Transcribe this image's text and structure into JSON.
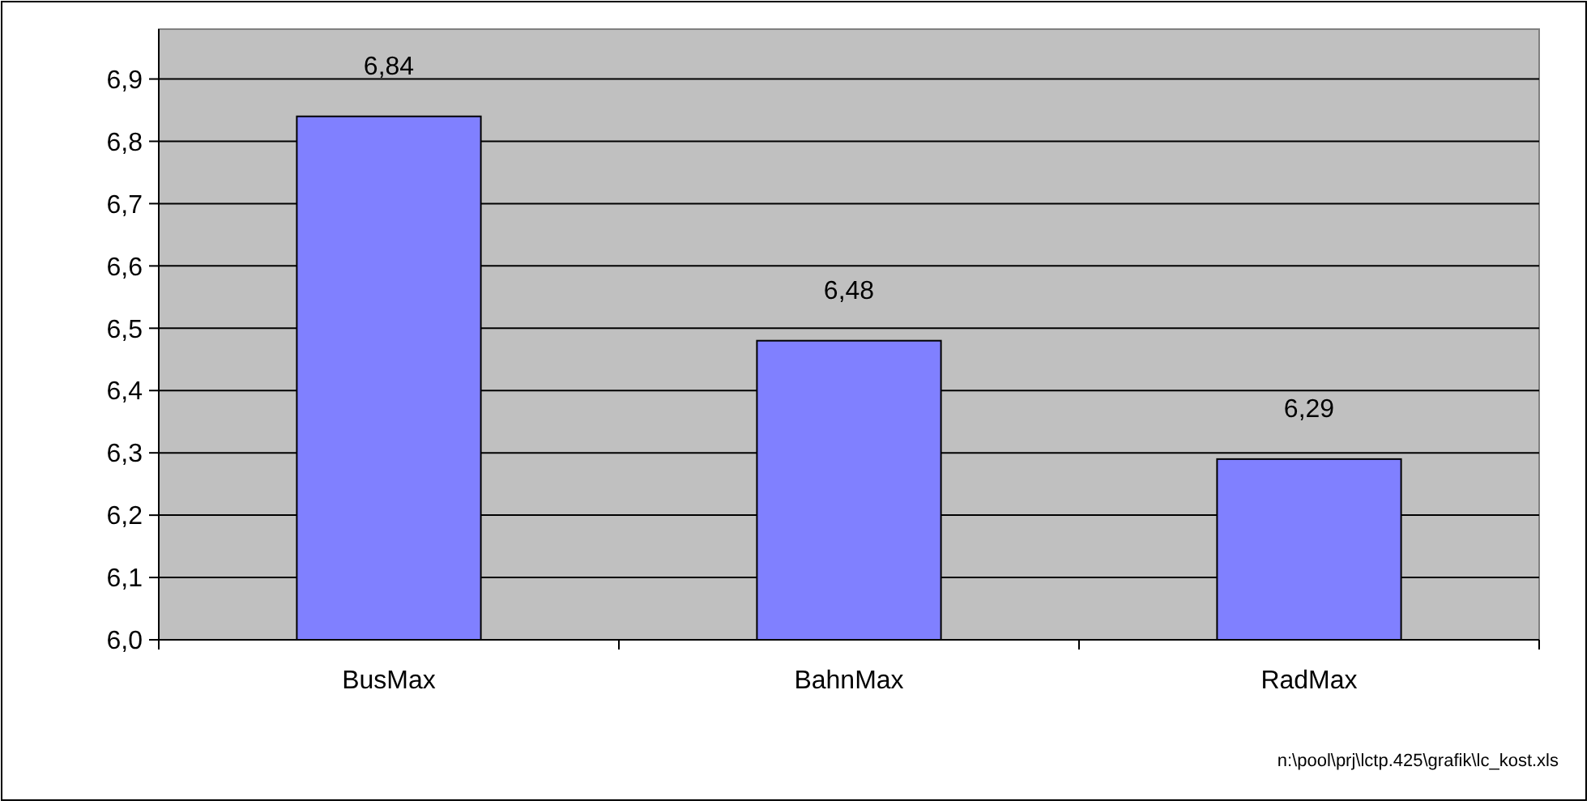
{
  "chart_data": {
    "type": "bar",
    "categories": [
      "BusMax",
      "BahnMax",
      "RadMax"
    ],
    "values": [
      6.84,
      6.48,
      6.29
    ],
    "value_labels": [
      "6,84",
      "6,48",
      "6,29"
    ],
    "color": "#8080ff",
    "ylim": [
      6.0,
      6.98
    ],
    "yticks": [
      {
        "value": 6.0,
        "label": "6,0"
      },
      {
        "value": 6.1,
        "label": "6,1"
      },
      {
        "value": 6.2,
        "label": "6,2"
      },
      {
        "value": 6.3,
        "label": "6,3"
      },
      {
        "value": 6.4,
        "label": "6,4"
      },
      {
        "value": 6.5,
        "label": "6,5"
      },
      {
        "value": 6.6,
        "label": "6,6"
      },
      {
        "value": 6.7,
        "label": "6,7"
      },
      {
        "value": 6.8,
        "label": "6,8"
      },
      {
        "value": 6.9,
        "label": "6,9"
      }
    ],
    "grid": "y",
    "annotations": [
      "n:\\pool\\prj\\lctp.425\\grafik\\lc_kost.xls"
    ]
  }
}
